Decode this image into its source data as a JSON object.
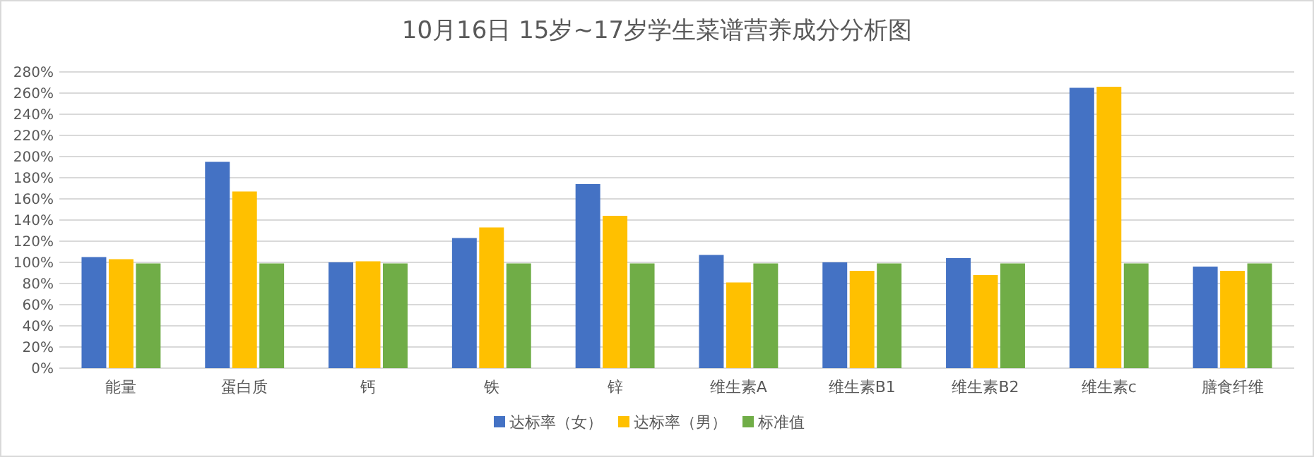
{
  "chart_data": {
    "type": "bar",
    "title": "10月16日 15岁~17岁学生菜谱营养成分分析图",
    "categories": [
      "能量",
      "蛋白质",
      "钙",
      "铁",
      "锌",
      "维生素A",
      "维生素B1",
      "维生素B2",
      "维生素c",
      "膳食纤维"
    ],
    "series": [
      {
        "name": "达标率（女）",
        "color": "#4472c4",
        "values": [
          105,
          195,
          100,
          123,
          174,
          107,
          100,
          104,
          265,
          96
        ]
      },
      {
        "name": "达标率（男）",
        "color": "#ffc000",
        "values": [
          103,
          167,
          101,
          133,
          144,
          81,
          92,
          88,
          266,
          92
        ]
      },
      {
        "name": "标准值",
        "color": "#70ad47",
        "values": [
          99,
          99,
          99,
          99,
          99,
          99,
          99,
          99,
          99,
          99
        ]
      }
    ],
    "ylim": [
      0,
      280
    ],
    "yticks": [
      {
        "value": 0,
        "label": "0%"
      },
      {
        "value": 20,
        "label": "20%"
      },
      {
        "value": 40,
        "label": "40%"
      },
      {
        "value": 60,
        "label": "60%"
      },
      {
        "value": 80,
        "label": "80%"
      },
      {
        "value": 100,
        "label": "100%"
      },
      {
        "value": 120,
        "label": "120%"
      },
      {
        "value": 140,
        "label": "140%"
      },
      {
        "value": 160,
        "label": "160%"
      },
      {
        "value": 180,
        "label": "180%"
      },
      {
        "value": 200,
        "label": "200%"
      },
      {
        "value": 220,
        "label": "220%"
      },
      {
        "value": 240,
        "label": "240%"
      },
      {
        "value": 260,
        "label": "260%"
      },
      {
        "value": 280,
        "label": "280%"
      }
    ],
    "grid": "y",
    "legend": "bottom"
  }
}
